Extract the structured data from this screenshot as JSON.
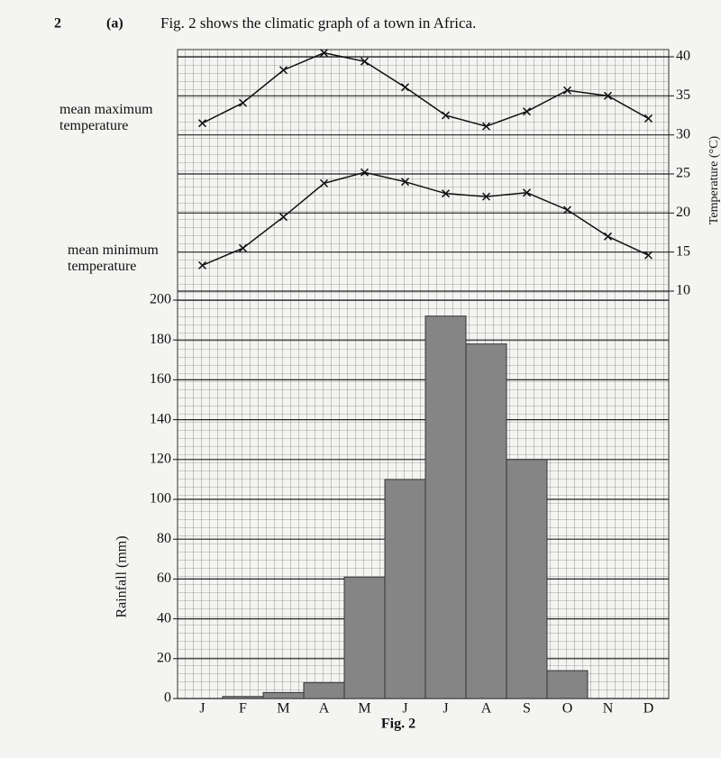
{
  "chart_data": {
    "type": "combo",
    "question_number": "2",
    "part": "(a)",
    "title": "Fig. 2 shows the climatic graph of a town in Africa.",
    "caption": "Fig. 2",
    "y_label": "Rainfall (mm)",
    "y2_label": "Temperature (°C)",
    "categories": [
      "J",
      "F",
      "M",
      "A",
      "M",
      "J",
      "J",
      "A",
      "S",
      "O",
      "N",
      "D"
    ],
    "ylim": [
      0,
      200
    ],
    "yticks": [
      0,
      20,
      40,
      60,
      80,
      100,
      120,
      140,
      160,
      180,
      200
    ],
    "y2lim": [
      10,
      40
    ],
    "y2ticks": [
      10,
      15,
      20,
      25,
      30,
      35,
      40
    ],
    "grid": true,
    "series": [
      {
        "type": "bar",
        "color": "#858585",
        "values": [
          0,
          1,
          3,
          8,
          61,
          110,
          192,
          178,
          120,
          14,
          0,
          0
        ]
      },
      {
        "type": "line",
        "name": "mean maximum temperature",
        "axis": "y2",
        "color": "#111111",
        "values": [
          31.5,
          34.1,
          38.3,
          40.5,
          39.4,
          36.1,
          32.5,
          31.1,
          33.0,
          35.7,
          35.0,
          32.1
        ]
      },
      {
        "type": "line",
        "name": "mean minimum temperature",
        "axis": "y2",
        "color": "#111111",
        "values": [
          13.3,
          15.5,
          19.5,
          23.8,
          25.2,
          24.0,
          22.5,
          22.1,
          22.6,
          20.4,
          17.0,
          14.6
        ]
      }
    ]
  }
}
